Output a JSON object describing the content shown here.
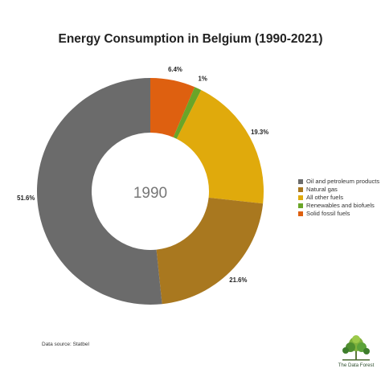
{
  "chart_data": {
    "type": "pie",
    "title": "Energy Consumption in Belgium (1990-2021)",
    "center_label": "1990",
    "categories": [
      "Oil and petroleum products",
      "Natural gas",
      "All other fuels",
      "Renewables and biofuels",
      "Solid fossil fuels"
    ],
    "values": [
      51.6,
      21.6,
      19.3,
      1,
      6.4
    ],
    "value_labels": [
      "51.6%",
      "21.6%",
      "19.3%",
      "1%",
      "6.4%"
    ],
    "colors": [
      "#6b6b6b",
      "#a9781f",
      "#e0aa0c",
      "#6aa528",
      "#de6010"
    ],
    "legend_placement": "right"
  },
  "footer": {
    "source": "Data source: Statbel",
    "logo_text": "The Data Forest"
  }
}
